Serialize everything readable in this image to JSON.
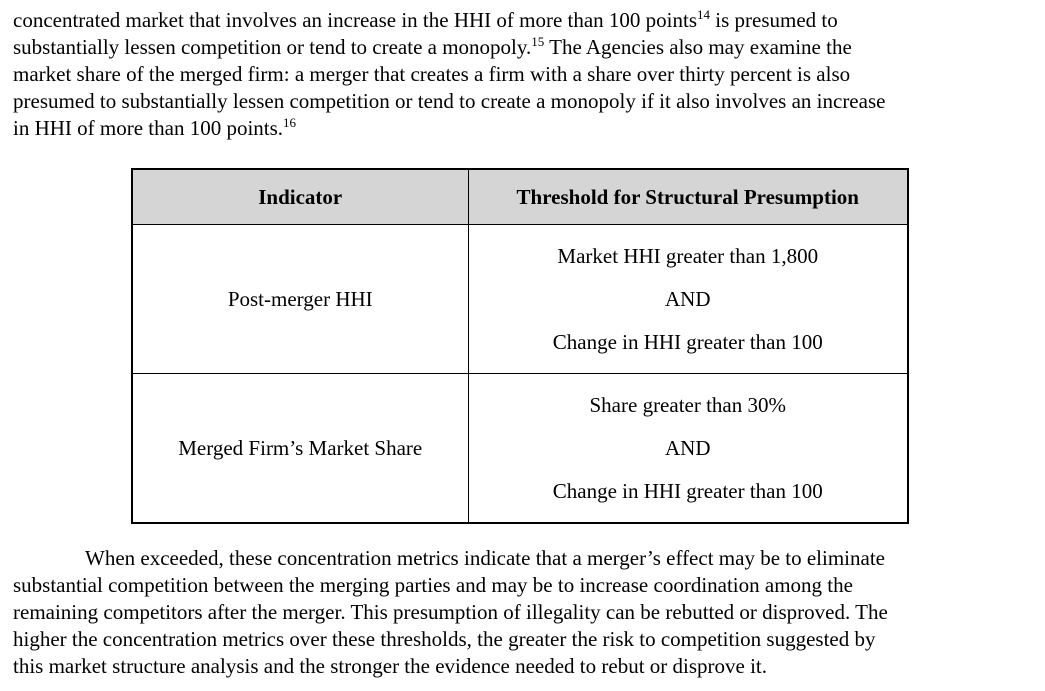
{
  "page": {
    "background_color": "#ffffff",
    "text_color": "#000000"
  },
  "paragraph_top": {
    "lines": [
      [
        {
          "t": "concentrated market that involves an increase in the HHI of more than 100 points"
        },
        {
          "t": "14",
          "sup": true
        },
        {
          "t": " is presumed to"
        }
      ],
      [
        {
          "t": "substantially lessen competition or tend to create a monopoly."
        },
        {
          "t": "15",
          "sup": true
        },
        {
          "t": " The Agencies also may examine the"
        }
      ],
      [
        {
          "t": "market share of the merged firm: a merger that creates a firm with a share over thirty percent is also"
        }
      ],
      [
        {
          "t": "presumed to substantially lessen competition or tend to create a monopoly if it also involves an increase"
        }
      ],
      [
        {
          "t": "in HHI of more than 100 points."
        },
        {
          "t": "16",
          "sup": true
        }
      ]
    ]
  },
  "table": {
    "header": {
      "col1": "Indicator",
      "col2": "Threshold for Structural Presumption",
      "bg": "#d5d5d5"
    },
    "rows": [
      {
        "indicator": "Post-merger HHI",
        "threshold_lines": [
          "Market HHI greater than 1,800",
          "AND",
          "Change in HHI greater than 100"
        ]
      },
      {
        "indicator": "Merged Firm’s Market Share",
        "threshold_lines": [
          "Share greater than 30%",
          "AND",
          "Change in HHI greater than 100"
        ]
      }
    ]
  },
  "paragraph_bottom": {
    "lines": [
      "When exceeded, these concentration metrics indicate that a merger’s effect may be to eliminate",
      "substantial competition between the merging parties and may be to increase coordination among the",
      "remaining competitors after the merger. This presumption of illegality can be rebutted or disproved. The",
      "higher the concentration metrics over these thresholds, the greater the risk to competition suggested by",
      "this market structure analysis and the stronger the evidence needed to rebut or disprove it."
    ]
  }
}
